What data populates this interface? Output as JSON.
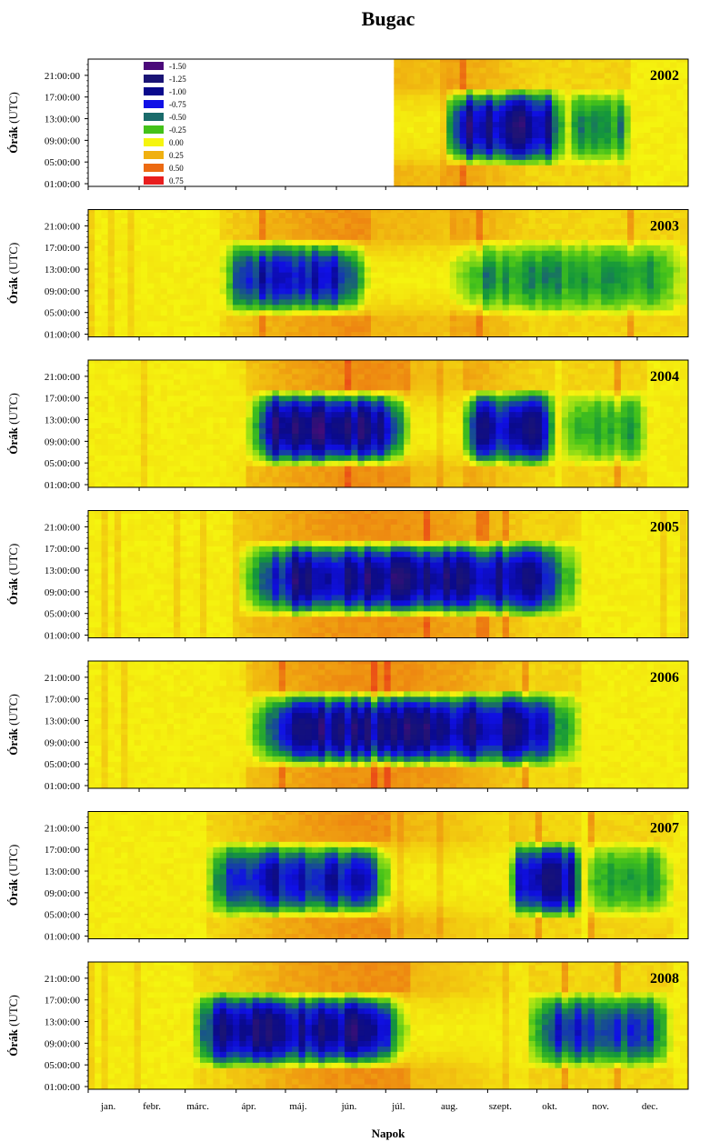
{
  "title": "Bugac",
  "chart_data": {
    "type": "heatmap",
    "title": "Bugac",
    "xlabel": "Napok",
    "ylabel": "Órák (UTC)",
    "x_tick_labels": [
      "jan.",
      "febr.",
      "márc.",
      "ápr.",
      "máj.",
      "jún.",
      "júl.",
      "aug.",
      "szept.",
      "okt.",
      "nov.",
      "dec."
    ],
    "y_tick_labels": [
      "01:00:00",
      "05:00:00",
      "09:00:00",
      "13:00:00",
      "17:00:00",
      "21:00:00"
    ],
    "x_range_days": [
      1,
      365
    ],
    "y_range_hours": [
      0.5,
      24
    ],
    "legend": {
      "placement": "top-left",
      "entries": [
        {
          "value": "-1.50",
          "color": "#4b0a7a"
        },
        {
          "value": "-1.25",
          "color": "#1a1475"
        },
        {
          "value": "-1.00",
          "color": "#0a0a8c"
        },
        {
          "value": "-0.75",
          "color": "#1010e6"
        },
        {
          "value": "-0.50",
          "color": "#1a6b6b"
        },
        {
          "value": "-0.25",
          "color": "#44c21a"
        },
        {
          "value": "0.00",
          "color": "#f5f50f"
        },
        {
          "value": "0.25",
          "color": "#f0b010"
        },
        {
          "value": "0.50",
          "color": "#ec6a12"
        },
        {
          "value": "0.75",
          "color": "#e81e1e"
        }
      ]
    },
    "panels": [
      {
        "year": "2002",
        "data_start_day": 187,
        "uptake_periods": [
          {
            "start_day": 215,
            "end_day": 290,
            "peak": 0.95
          },
          {
            "start_day": 290,
            "end_day": 330,
            "peak": 0.35
          }
        ],
        "peak_day": 250
      },
      {
        "year": "2003",
        "data_start_day": 1,
        "uptake_periods": [
          {
            "start_day": 80,
            "end_day": 170,
            "peak": 0.7
          },
          {
            "start_day": 215,
            "end_day": 365,
            "peak": 0.35
          }
        ],
        "peak_day": 120
      },
      {
        "year": "2004",
        "data_start_day": 1,
        "uptake_periods": [
          {
            "start_day": 95,
            "end_day": 195,
            "peak": 1.0
          },
          {
            "start_day": 225,
            "end_day": 285,
            "peak": 0.85
          },
          {
            "start_day": 285,
            "end_day": 340,
            "peak": 0.3
          }
        ],
        "peak_day": 140
      },
      {
        "year": "2005",
        "data_start_day": 1,
        "uptake_periods": [
          {
            "start_day": 90,
            "end_day": 300,
            "peak": 0.95
          }
        ],
        "peak_day": 130
      },
      {
        "year": "2006",
        "data_start_day": 1,
        "uptake_periods": [
          {
            "start_day": 95,
            "end_day": 300,
            "peak": 0.95
          }
        ],
        "peak_day": 165
      },
      {
        "year": "2007",
        "data_start_day": 1,
        "uptake_periods": [
          {
            "start_day": 70,
            "end_day": 185,
            "peak": 0.75
          },
          {
            "start_day": 255,
            "end_day": 300,
            "peak": 0.85
          },
          {
            "start_day": 300,
            "end_day": 355,
            "peak": 0.3
          }
        ],
        "peak_day": 110
      },
      {
        "year": "2008",
        "data_start_day": 1,
        "uptake_periods": [
          {
            "start_day": 60,
            "end_day": 195,
            "peak": 0.95
          },
          {
            "start_day": 265,
            "end_day": 355,
            "peak": 0.6
          }
        ],
        "peak_day": 130
      }
    ]
  }
}
